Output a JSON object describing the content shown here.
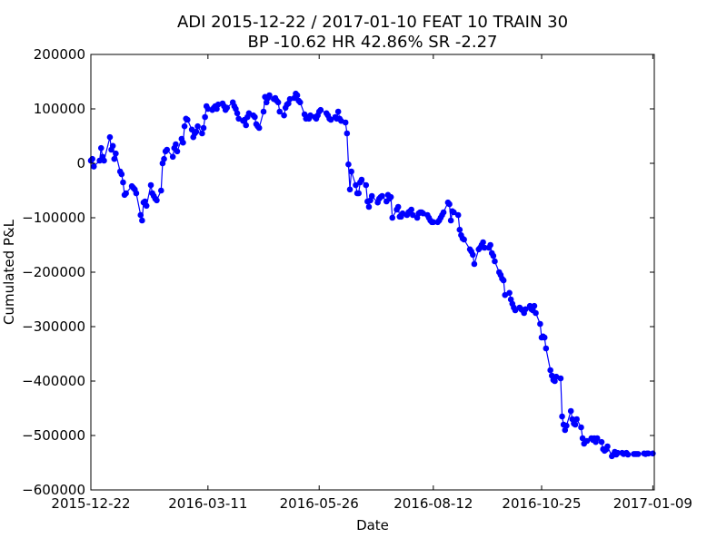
{
  "chart_data": {
    "type": "line",
    "title_line1": "ADI 2015-12-22 / 2017-01-10 FEAT 10 TRAIN 30",
    "title_line2": "BP -10.62 HR 42.86%  SR -2.27",
    "xlabel": "Date",
    "ylabel": "Cumulated P&L",
    "x_range": [
      "2015-12-22",
      "2017-01-10"
    ],
    "ylim": [
      -600000,
      200000
    ],
    "x_ticks": [
      "2015-12-22",
      "2016-03-11",
      "2016-05-26",
      "2016-08-12",
      "2016-10-25",
      "2017-01-09"
    ],
    "y_ticks": [
      200000,
      100000,
      0,
      -100000,
      -200000,
      -300000,
      -400000,
      -500000,
      -600000
    ],
    "y_tick_labels": [
      "200000",
      "100000",
      "0",
      "−100000",
      "−200000",
      "−300000",
      "−400000",
      "−500000",
      "−600000"
    ],
    "grid": false,
    "colors": {
      "series": "#0000ff"
    },
    "series": [
      {
        "values": [
          [
            "2015-12-22",
            5000
          ],
          [
            "2015-12-23",
            8000
          ],
          [
            "2015-12-24",
            -6000
          ],
          [
            "2015-12-28",
            5000
          ],
          [
            "2015-12-29",
            28000
          ],
          [
            "2015-12-30",
            12000
          ],
          [
            "2015-12-31",
            5000
          ],
          [
            "2016-01-04",
            48000
          ],
          [
            "2016-01-05",
            25000
          ],
          [
            "2016-01-06",
            32000
          ],
          [
            "2016-01-07",
            8000
          ],
          [
            "2016-01-08",
            18000
          ],
          [
            "2016-01-11",
            -15000
          ],
          [
            "2016-01-12",
            -20000
          ],
          [
            "2016-01-13",
            -35000
          ],
          [
            "2016-01-14",
            -58000
          ],
          [
            "2016-01-15",
            -55000
          ],
          [
            "2016-01-19",
            -42000
          ],
          [
            "2016-01-20",
            -45000
          ],
          [
            "2016-01-21",
            -48000
          ],
          [
            "2016-01-22",
            -55000
          ],
          [
            "2016-01-25",
            -95000
          ],
          [
            "2016-01-26",
            -105000
          ],
          [
            "2016-01-27",
            -72000
          ],
          [
            "2016-01-28",
            -70000
          ],
          [
            "2016-01-29",
            -78000
          ],
          [
            "2016-02-01",
            -40000
          ],
          [
            "2016-02-02",
            -55000
          ],
          [
            "2016-02-03",
            -60000
          ],
          [
            "2016-02-04",
            -65000
          ],
          [
            "2016-02-05",
            -68000
          ],
          [
            "2016-02-08",
            -50000
          ],
          [
            "2016-02-09",
            0
          ],
          [
            "2016-02-10",
            8000
          ],
          [
            "2016-02-11",
            22000
          ],
          [
            "2016-02-12",
            25000
          ],
          [
            "2016-02-16",
            12000
          ],
          [
            "2016-02-17",
            28000
          ],
          [
            "2016-02-18",
            35000
          ],
          [
            "2016-02-19",
            22000
          ],
          [
            "2016-02-22",
            45000
          ],
          [
            "2016-02-23",
            38000
          ],
          [
            "2016-02-24",
            68000
          ],
          [
            "2016-02-25",
            82000
          ],
          [
            "2016-02-26",
            80000
          ],
          [
            "2016-02-29",
            62000
          ],
          [
            "2016-03-01",
            48000
          ],
          [
            "2016-03-02",
            55000
          ],
          [
            "2016-03-03",
            58000
          ],
          [
            "2016-03-04",
            68000
          ],
          [
            "2016-03-07",
            55000
          ],
          [
            "2016-03-08",
            65000
          ],
          [
            "2016-03-09",
            85000
          ],
          [
            "2016-03-10",
            105000
          ],
          [
            "2016-03-11",
            100000
          ],
          [
            "2016-03-14",
            98000
          ],
          [
            "2016-03-15",
            102000
          ],
          [
            "2016-03-16",
            105000
          ],
          [
            "2016-03-17",
            100000
          ],
          [
            "2016-03-18",
            108000
          ],
          [
            "2016-03-21",
            110000
          ],
          [
            "2016-03-22",
            105000
          ],
          [
            "2016-03-23",
            98000
          ],
          [
            "2016-03-24",
            102000
          ],
          [
            "2016-03-28",
            112000
          ],
          [
            "2016-03-29",
            105000
          ],
          [
            "2016-03-30",
            100000
          ],
          [
            "2016-03-31",
            92000
          ],
          [
            "2016-04-01",
            82000
          ],
          [
            "2016-04-04",
            78000
          ],
          [
            "2016-04-05",
            80000
          ],
          [
            "2016-04-06",
            70000
          ],
          [
            "2016-04-07",
            85000
          ],
          [
            "2016-04-08",
            92000
          ],
          [
            "2016-04-11",
            88000
          ],
          [
            "2016-04-12",
            85000
          ],
          [
            "2016-04-13",
            72000
          ],
          [
            "2016-04-14",
            68000
          ],
          [
            "2016-04-15",
            65000
          ],
          [
            "2016-04-18",
            95000
          ],
          [
            "2016-04-19",
            122000
          ],
          [
            "2016-04-20",
            112000
          ],
          [
            "2016-04-21",
            120000
          ],
          [
            "2016-04-22",
            125000
          ],
          [
            "2016-04-25",
            118000
          ],
          [
            "2016-04-26",
            120000
          ],
          [
            "2016-04-27",
            115000
          ],
          [
            "2016-04-28",
            112000
          ],
          [
            "2016-04-29",
            95000
          ],
          [
            "2016-05-02",
            88000
          ],
          [
            "2016-05-03",
            102000
          ],
          [
            "2016-05-04",
            108000
          ],
          [
            "2016-05-05",
            110000
          ],
          [
            "2016-05-06",
            118000
          ],
          [
            "2016-05-09",
            120000
          ],
          [
            "2016-05-10",
            128000
          ],
          [
            "2016-05-11",
            125000
          ],
          [
            "2016-05-12",
            115000
          ],
          [
            "2016-05-13",
            112000
          ],
          [
            "2016-05-16",
            90000
          ],
          [
            "2016-05-17",
            82000
          ],
          [
            "2016-05-18",
            85000
          ],
          [
            "2016-05-19",
            82000
          ],
          [
            "2016-05-20",
            88000
          ],
          [
            "2016-05-23",
            85000
          ],
          [
            "2016-05-24",
            82000
          ],
          [
            "2016-05-25",
            88000
          ],
          [
            "2016-05-26",
            95000
          ],
          [
            "2016-05-27",
            98000
          ],
          [
            "2016-05-31",
            92000
          ],
          [
            "2016-06-01",
            88000
          ],
          [
            "2016-06-02",
            82000
          ],
          [
            "2016-06-03",
            80000
          ],
          [
            "2016-06-06",
            85000
          ],
          [
            "2016-06-07",
            82000
          ],
          [
            "2016-06-08",
            95000
          ],
          [
            "2016-06-09",
            82000
          ],
          [
            "2016-06-10",
            78000
          ],
          [
            "2016-06-13",
            75000
          ],
          [
            "2016-06-14",
            55000
          ],
          [
            "2016-06-15",
            -2000
          ],
          [
            "2016-06-16",
            -48000
          ],
          [
            "2016-06-17",
            -15000
          ],
          [
            "2016-06-20",
            -40000
          ],
          [
            "2016-06-21",
            -55000
          ],
          [
            "2016-06-22",
            -55000
          ],
          [
            "2016-06-23",
            -35000
          ],
          [
            "2016-06-24",
            -30000
          ],
          [
            "2016-06-27",
            -40000
          ],
          [
            "2016-06-28",
            -70000
          ],
          [
            "2016-06-29",
            -80000
          ],
          [
            "2016-06-30",
            -68000
          ],
          [
            "2016-07-01",
            -60000
          ],
          [
            "2016-07-05",
            -72000
          ],
          [
            "2016-07-06",
            -65000
          ],
          [
            "2016-07-07",
            -62000
          ],
          [
            "2016-07-08",
            -60000
          ],
          [
            "2016-07-11",
            -70000
          ],
          [
            "2016-07-12",
            -58000
          ],
          [
            "2016-07-13",
            -65000
          ],
          [
            "2016-07-14",
            -62000
          ],
          [
            "2016-07-15",
            -100000
          ],
          [
            "2016-07-18",
            -85000
          ],
          [
            "2016-07-19",
            -80000
          ],
          [
            "2016-07-20",
            -98000
          ],
          [
            "2016-07-21",
            -98000
          ],
          [
            "2016-07-22",
            -92000
          ],
          [
            "2016-07-25",
            -95000
          ],
          [
            "2016-07-26",
            -90000
          ],
          [
            "2016-07-27",
            -88000
          ],
          [
            "2016-07-28",
            -85000
          ],
          [
            "2016-07-29",
            -95000
          ],
          [
            "2016-08-01",
            -100000
          ],
          [
            "2016-08-02",
            -92000
          ],
          [
            "2016-08-03",
            -90000
          ],
          [
            "2016-08-04",
            -90000
          ],
          [
            "2016-08-05",
            -92000
          ],
          [
            "2016-08-08",
            -95000
          ],
          [
            "2016-08-09",
            -100000
          ],
          [
            "2016-08-10",
            -105000
          ],
          [
            "2016-08-11",
            -108000
          ],
          [
            "2016-08-12",
            -108000
          ],
          [
            "2016-08-15",
            -108000
          ],
          [
            "2016-08-16",
            -105000
          ],
          [
            "2016-08-17",
            -100000
          ],
          [
            "2016-08-18",
            -95000
          ],
          [
            "2016-08-19",
            -90000
          ],
          [
            "2016-08-22",
            -72000
          ],
          [
            "2016-08-23",
            -75000
          ],
          [
            "2016-08-24",
            -105000
          ],
          [
            "2016-08-25",
            -88000
          ],
          [
            "2016-08-26",
            -90000
          ],
          [
            "2016-08-29",
            -95000
          ],
          [
            "2016-08-30",
            -122000
          ],
          [
            "2016-08-31",
            -132000
          ],
          [
            "2016-09-01",
            -138000
          ],
          [
            "2016-09-02",
            -140000
          ],
          [
            "2016-09-06",
            -158000
          ],
          [
            "2016-09-07",
            -162000
          ],
          [
            "2016-09-08",
            -168000
          ],
          [
            "2016-09-09",
            -185000
          ],
          [
            "2016-09-12",
            -158000
          ],
          [
            "2016-09-13",
            -155000
          ],
          [
            "2016-09-14",
            -150000
          ],
          [
            "2016-09-15",
            -145000
          ],
          [
            "2016-09-16",
            -155000
          ],
          [
            "2016-09-19",
            -155000
          ],
          [
            "2016-09-20",
            -150000
          ],
          [
            "2016-09-21",
            -165000
          ],
          [
            "2016-09-22",
            -170000
          ],
          [
            "2016-09-23",
            -180000
          ],
          [
            "2016-09-26",
            -200000
          ],
          [
            "2016-09-27",
            -205000
          ],
          [
            "2016-09-28",
            -212000
          ],
          [
            "2016-09-29",
            -215000
          ],
          [
            "2016-09-30",
            -242000
          ],
          [
            "2016-10-03",
            -238000
          ],
          [
            "2016-10-04",
            -250000
          ],
          [
            "2016-10-05",
            -258000
          ],
          [
            "2016-10-06",
            -265000
          ],
          [
            "2016-10-07",
            -270000
          ],
          [
            "2016-10-10",
            -265000
          ],
          [
            "2016-10-11",
            -268000
          ],
          [
            "2016-10-12",
            -270000
          ],
          [
            "2016-10-13",
            -275000
          ],
          [
            "2016-10-14",
            -268000
          ],
          [
            "2016-10-17",
            -262000
          ],
          [
            "2016-10-18",
            -268000
          ],
          [
            "2016-10-19",
            -270000
          ],
          [
            "2016-10-20",
            -262000
          ],
          [
            "2016-10-21",
            -275000
          ],
          [
            "2016-10-24",
            -295000
          ],
          [
            "2016-10-25",
            -320000
          ],
          [
            "2016-10-26",
            -318000
          ],
          [
            "2016-10-27",
            -320000
          ],
          [
            "2016-10-28",
            -340000
          ],
          [
            "2016-10-31",
            -380000
          ],
          [
            "2016-11-01",
            -390000
          ],
          [
            "2016-11-02",
            -398000
          ],
          [
            "2016-11-03",
            -400000
          ],
          [
            "2016-11-04",
            -392000
          ],
          [
            "2016-11-07",
            -395000
          ],
          [
            "2016-11-08",
            -465000
          ],
          [
            "2016-11-09",
            -480000
          ],
          [
            "2016-11-10",
            -490000
          ],
          [
            "2016-11-11",
            -482000
          ],
          [
            "2016-11-14",
            -455000
          ],
          [
            "2016-11-15",
            -470000
          ],
          [
            "2016-11-16",
            -478000
          ],
          [
            "2016-11-17",
            -480000
          ],
          [
            "2016-11-18",
            -470000
          ],
          [
            "2016-11-21",
            -485000
          ],
          [
            "2016-11-22",
            -505000
          ],
          [
            "2016-11-23",
            -515000
          ],
          [
            "2016-11-25",
            -510000
          ],
          [
            "2016-11-28",
            -505000
          ],
          [
            "2016-11-29",
            -508000
          ],
          [
            "2016-11-30",
            -505000
          ],
          [
            "2016-12-01",
            -512000
          ],
          [
            "2016-12-02",
            -505000
          ],
          [
            "2016-12-05",
            -512000
          ],
          [
            "2016-12-06",
            -525000
          ],
          [
            "2016-12-07",
            -528000
          ],
          [
            "2016-12-08",
            -526000
          ],
          [
            "2016-12-09",
            -520000
          ],
          [
            "2016-12-12",
            -538000
          ],
          [
            "2016-12-13",
            -535000
          ],
          [
            "2016-12-14",
            -530000
          ],
          [
            "2016-12-15",
            -535000
          ],
          [
            "2016-12-16",
            -532000
          ],
          [
            "2016-12-19",
            -532000
          ],
          [
            "2016-12-20",
            -534000
          ],
          [
            "2016-12-21",
            -533000
          ],
          [
            "2016-12-22",
            -532000
          ],
          [
            "2016-12-23",
            -535000
          ],
          [
            "2016-12-27",
            -534000
          ],
          [
            "2016-12-28",
            -534000
          ],
          [
            "2016-12-29",
            -534000
          ],
          [
            "2016-12-30",
            -534000
          ],
          [
            "2017-01-03",
            -533000
          ],
          [
            "2017-01-04",
            -534000
          ],
          [
            "2017-01-05",
            -533000
          ],
          [
            "2017-01-06",
            -533000
          ],
          [
            "2017-01-09",
            -533000
          ]
        ]
      }
    ]
  }
}
